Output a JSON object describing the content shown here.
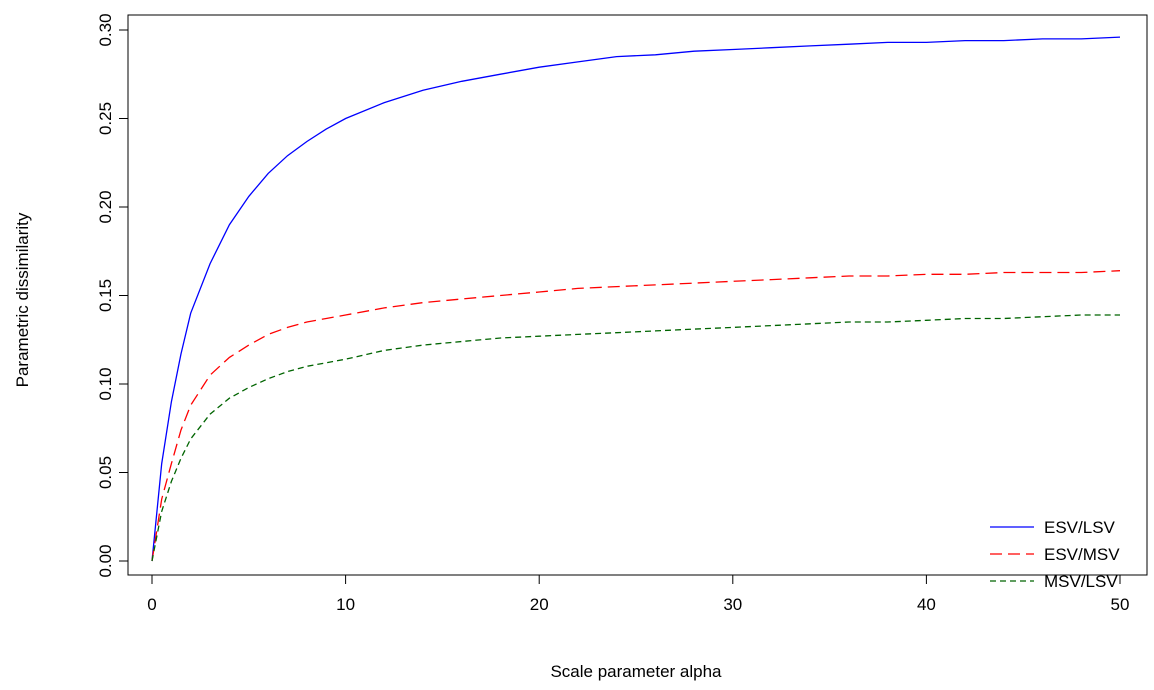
{
  "chart_data": {
    "type": "line",
    "xlabel": "Scale parameter alpha",
    "ylabel": "Parametric dissimilarity",
    "xlim": [
      0,
      50
    ],
    "ylim": [
      0,
      0.3
    ],
    "xticks": [
      0,
      10,
      20,
      30,
      40,
      50
    ],
    "xtick_labels": [
      "0",
      "10",
      "20",
      "30",
      "40",
      "50"
    ],
    "yticks": [
      0,
      0.05,
      0.1,
      0.15,
      0.2,
      0.25,
      0.3
    ],
    "ytick_labels": [
      "0.00",
      "0.05",
      "0.10",
      "0.15",
      "0.20",
      "0.25",
      "0.30"
    ],
    "grid": false,
    "legend_position": "bottom-right",
    "x": [
      0,
      0.5,
      1,
      1.5,
      2,
      3,
      4,
      5,
      6,
      7,
      8,
      9,
      10,
      12,
      14,
      16,
      18,
      20,
      22,
      24,
      26,
      28,
      30,
      32,
      34,
      36,
      38,
      40,
      42,
      44,
      46,
      48,
      50
    ],
    "series": [
      {
        "name": "ESV/LSV",
        "color": "#0000ff",
        "dash": "solid",
        "values": [
          0.0,
          0.055,
          0.09,
          0.117,
          0.14,
          0.168,
          0.19,
          0.206,
          0.219,
          0.229,
          0.237,
          0.244,
          0.25,
          0.259,
          0.266,
          0.271,
          0.275,
          0.279,
          0.282,
          0.285,
          0.286,
          0.288,
          0.289,
          0.29,
          0.291,
          0.292,
          0.293,
          0.293,
          0.294,
          0.294,
          0.295,
          0.295,
          0.296
        ]
      },
      {
        "name": "ESV/MSV",
        "color": "#ff0000",
        "dash": "long-dash",
        "values": [
          0.0,
          0.035,
          0.055,
          0.074,
          0.088,
          0.105,
          0.115,
          0.122,
          0.128,
          0.132,
          0.135,
          0.137,
          0.139,
          0.143,
          0.146,
          0.148,
          0.15,
          0.152,
          0.154,
          0.155,
          0.156,
          0.157,
          0.158,
          0.159,
          0.16,
          0.161,
          0.161,
          0.162,
          0.162,
          0.163,
          0.163,
          0.163,
          0.164
        ]
      },
      {
        "name": "MSV/LSV",
        "color": "#006400",
        "dash": "short-dash",
        "values": [
          0.0,
          0.028,
          0.045,
          0.058,
          0.069,
          0.083,
          0.092,
          0.098,
          0.103,
          0.107,
          0.11,
          0.112,
          0.114,
          0.119,
          0.122,
          0.124,
          0.126,
          0.127,
          0.128,
          0.129,
          0.13,
          0.131,
          0.132,
          0.133,
          0.134,
          0.135,
          0.135,
          0.136,
          0.137,
          0.137,
          0.138,
          0.139,
          0.139
        ]
      }
    ]
  }
}
